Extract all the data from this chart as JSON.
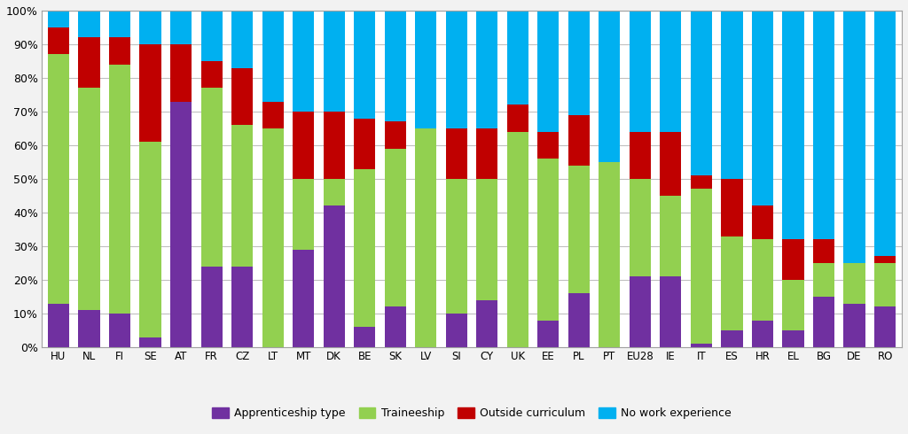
{
  "categories": [
    "HU",
    "NL",
    "FI",
    "SE",
    "AT",
    "FR",
    "CZ",
    "LT",
    "MT",
    "DK",
    "BE",
    "SK",
    "LV",
    "SI",
    "CY",
    "UK",
    "EE",
    "PL",
    "PT",
    "EU28",
    "IE",
    "IT",
    "ES",
    "HR",
    "EL",
    "BG",
    "DE",
    "RO"
  ],
  "apprenticeship": [
    13,
    11,
    10,
    3,
    73,
    24,
    24,
    0,
    29,
    42,
    6,
    12,
    0,
    10,
    14,
    0,
    8,
    16,
    0,
    21,
    21,
    1,
    5,
    8,
    5,
    15,
    13,
    12
  ],
  "traineeship": [
    74,
    66,
    74,
    58,
    0,
    53,
    42,
    65,
    21,
    8,
    47,
    47,
    65,
    40,
    36,
    64,
    48,
    38,
    55,
    29,
    24,
    46,
    28,
    24,
    15,
    10,
    12,
    13
  ],
  "outside": [
    8,
    15,
    8,
    29,
    17,
    8,
    17,
    8,
    20,
    20,
    15,
    8,
    0,
    15,
    15,
    8,
    8,
    15,
    0,
    14,
    19,
    4,
    17,
    10,
    12,
    7,
    0,
    2
  ],
  "nowork": [
    5,
    8,
    8,
    10,
    10,
    15,
    17,
    27,
    30,
    30,
    32,
    33,
    35,
    35,
    35,
    28,
    36,
    31,
    45,
    36,
    36,
    49,
    50,
    58,
    68,
    68,
    75,
    73
  ],
  "colors": {
    "apprenticeship": "#7030a0",
    "traineeship": "#92d050",
    "outside": "#c00000",
    "nowork": "#00b0f0"
  },
  "legend_labels": [
    "Apprenticeship type",
    "Traineeship",
    "Outside curriculum",
    "No work experience"
  ],
  "ylabel_ticks": [
    "0%",
    "10%",
    "20%",
    "30%",
    "40%",
    "50%",
    "60%",
    "70%",
    "80%",
    "90%",
    "100%"
  ],
  "background_color": "#f2f2f2",
  "plot_bg_color": "#ffffff",
  "grid_color": "#c0c0c0",
  "bar_width": 0.7,
  "figsize": [
    10.24,
    4.9
  ],
  "dpi": 100
}
